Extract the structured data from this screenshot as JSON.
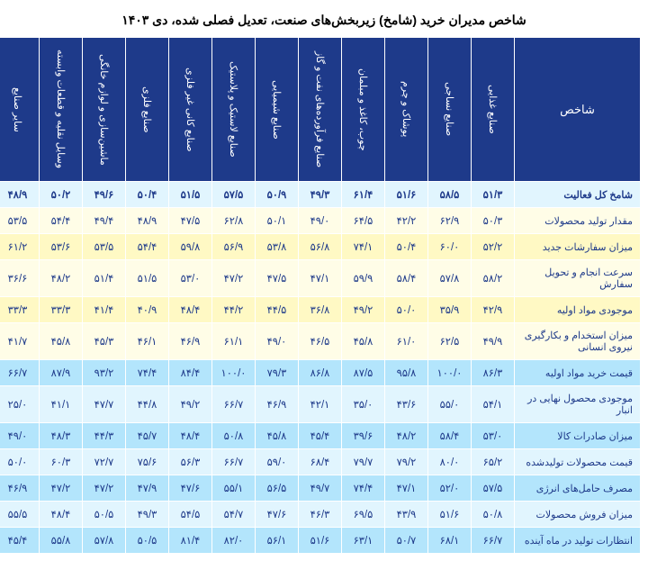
{
  "title": "شاخص مدیران خرید (شامخ) زیربخش‌های صنعت، تعدیل فصلی شده، دی ۱۴۰۳",
  "index_header": "شاخص",
  "columns": [
    "صنایع غذایی",
    "صنایع نساجی",
    "پوشاک و چرم",
    "چوب، کاغذ و مبلمان",
    "صنایع فرآورده‌های نفت و گاز",
    "صنایع شیمیایی",
    "صنایع لاستیک و پلاستیک",
    "صنایع کانی غیر فلزی",
    "صنایع فلزی",
    "ماشین‌سازی و لوازم خانگی",
    "وسایل نقلیه و قطعات وابسته",
    "سایر صنایع"
  ],
  "rows": [
    {
      "label": "شامخ کل فعالیت",
      "bold": true,
      "cls": "blue",
      "v": [
        "۵۱/۳",
        "۵۸/۵",
        "۵۱/۶",
        "۶۱/۴",
        "۴۹/۳",
        "۵۰/۹",
        "۵۷/۵",
        "۵۱/۵",
        "۵۰/۴",
        "۴۹/۶",
        "۵۰/۲",
        "۴۸/۹"
      ]
    },
    {
      "label": "مقدار تولید محصولات",
      "cls": "yellow2",
      "v": [
        "۵۰/۳",
        "۶۲/۹",
        "۴۲/۲",
        "۶۴/۵",
        "۴۹/۰",
        "۵۰/۱",
        "۶۲/۸",
        "۴۷/۵",
        "۴۸/۹",
        "۴۹/۴",
        "۵۴/۴",
        "۵۳/۵"
      ]
    },
    {
      "label": "میزان سفارشات جدید",
      "cls": "yellow",
      "v": [
        "۵۲/۲",
        "۶۰/۰",
        "۵۰/۴",
        "۷۴/۱",
        "۵۶/۸",
        "۵۳/۸",
        "۵۶/۹",
        "۵۹/۸",
        "۵۴/۴",
        "۵۳/۵",
        "۵۳/۶",
        "۶۱/۲"
      ]
    },
    {
      "label": "سرعت انجام و تحویل سفارش",
      "cls": "yellow2",
      "v": [
        "۵۸/۲",
        "۵۷/۸",
        "۵۸/۴",
        "۵۹/۹",
        "۴۷/۱",
        "۴۷/۵",
        "۴۷/۲",
        "۵۳/۰",
        "۵۱/۵",
        "۵۱/۴",
        "۴۸/۲",
        "۳۶/۶"
      ]
    },
    {
      "label": "موجودی مواد اولیه",
      "cls": "yellow",
      "v": [
        "۴۲/۹",
        "۳۵/۹",
        "۵۰/۰",
        "۴۹/۲",
        "۳۶/۸",
        "۴۴/۵",
        "۴۴/۲",
        "۴۸/۴",
        "۴۰/۹",
        "۴۱/۴",
        "۳۳/۳",
        "۳۳/۳"
      ]
    },
    {
      "label": "میزان استخدام و بکارگیری نیروی انسانی",
      "cls": "yellow2",
      "v": [
        "۴۹/۹",
        "۶۲/۵",
        "۶۱/۰",
        "۴۵/۸",
        "۴۶/۵",
        "۴۹/۰",
        "۶۱/۱",
        "۴۶/۹",
        "۴۶/۱",
        "۴۵/۳",
        "۴۵/۸",
        "۴۱/۷"
      ]
    },
    {
      "label": "قیمت خرید مواد اولیه",
      "cls": "blue2",
      "v": [
        "۸۶/۳",
        "۱۰۰/۰",
        "۹۵/۸",
        "۸۷/۵",
        "۸۶/۸",
        "۷۹/۳",
        "۱۰۰/۰",
        "۸۴/۴",
        "۷۴/۴",
        "۹۳/۲",
        "۸۷/۹",
        "۶۶/۷"
      ]
    },
    {
      "label": "موجودی محصول نهایی در انبار",
      "cls": "blue",
      "v": [
        "۵۴/۱",
        "۵۵/۰",
        "۴۳/۶",
        "۳۵/۰",
        "۴۲/۱",
        "۴۶/۹",
        "۶۶/۷",
        "۴۹/۲",
        "۴۴/۸",
        "۴۷/۷",
        "۴۱/۱",
        "۲۵/۰"
      ]
    },
    {
      "label": "میزان صادرات کالا",
      "cls": "blue2",
      "v": [
        "۵۳/۰",
        "۵۸/۴",
        "۴۸/۲",
        "۳۹/۶",
        "۴۵/۴",
        "۴۵/۸",
        "۵۰/۸",
        "۴۸/۴",
        "۴۵/۷",
        "۴۴/۳",
        "۴۸/۳",
        "۴۹/۰"
      ]
    },
    {
      "label": "قیمت محصولات تولیدشده",
      "cls": "blue",
      "v": [
        "۶۵/۲",
        "۸۰/۰",
        "۷۹/۲",
        "۷۹/۷",
        "۶۸/۴",
        "۵۹/۰",
        "۶۶/۷",
        "۵۶/۳",
        "۷۵/۶",
        "۷۲/۷",
        "۶۰/۳",
        "۵۰/۰"
      ]
    },
    {
      "label": "مصرف حامل‌های انرژی",
      "cls": "blue2",
      "v": [
        "۵۷/۵",
        "۵۲/۰",
        "۴۷/۱",
        "۷۴/۴",
        "۴۹/۷",
        "۵۶/۵",
        "۵۵/۱",
        "۴۷/۶",
        "۴۷/۹",
        "۴۷/۲",
        "۴۷/۲",
        "۴۶/۹"
      ]
    },
    {
      "label": "میزان فروش محصولات",
      "cls": "blue",
      "v": [
        "۵۰/۸",
        "۵۱/۶",
        "۴۳/۹",
        "۶۹/۵",
        "۴۶/۳",
        "۴۷/۶",
        "۵۴/۷",
        "۵۴/۵",
        "۴۹/۳",
        "۵۰/۵",
        "۴۸/۴",
        "۵۵/۵"
      ]
    },
    {
      "label": "انتظارات تولید در ماه آینده",
      "cls": "blue2",
      "v": [
        "۶۶/۷",
        "۶۸/۱",
        "۵۰/۷",
        "۶۳/۱",
        "۵۱/۶",
        "۵۶/۱",
        "۸۲/۰",
        "۸۱/۴",
        "۵۰/۵",
        "۵۷/۸",
        "۵۵/۸",
        "۴۵/۴"
      ]
    }
  ]
}
